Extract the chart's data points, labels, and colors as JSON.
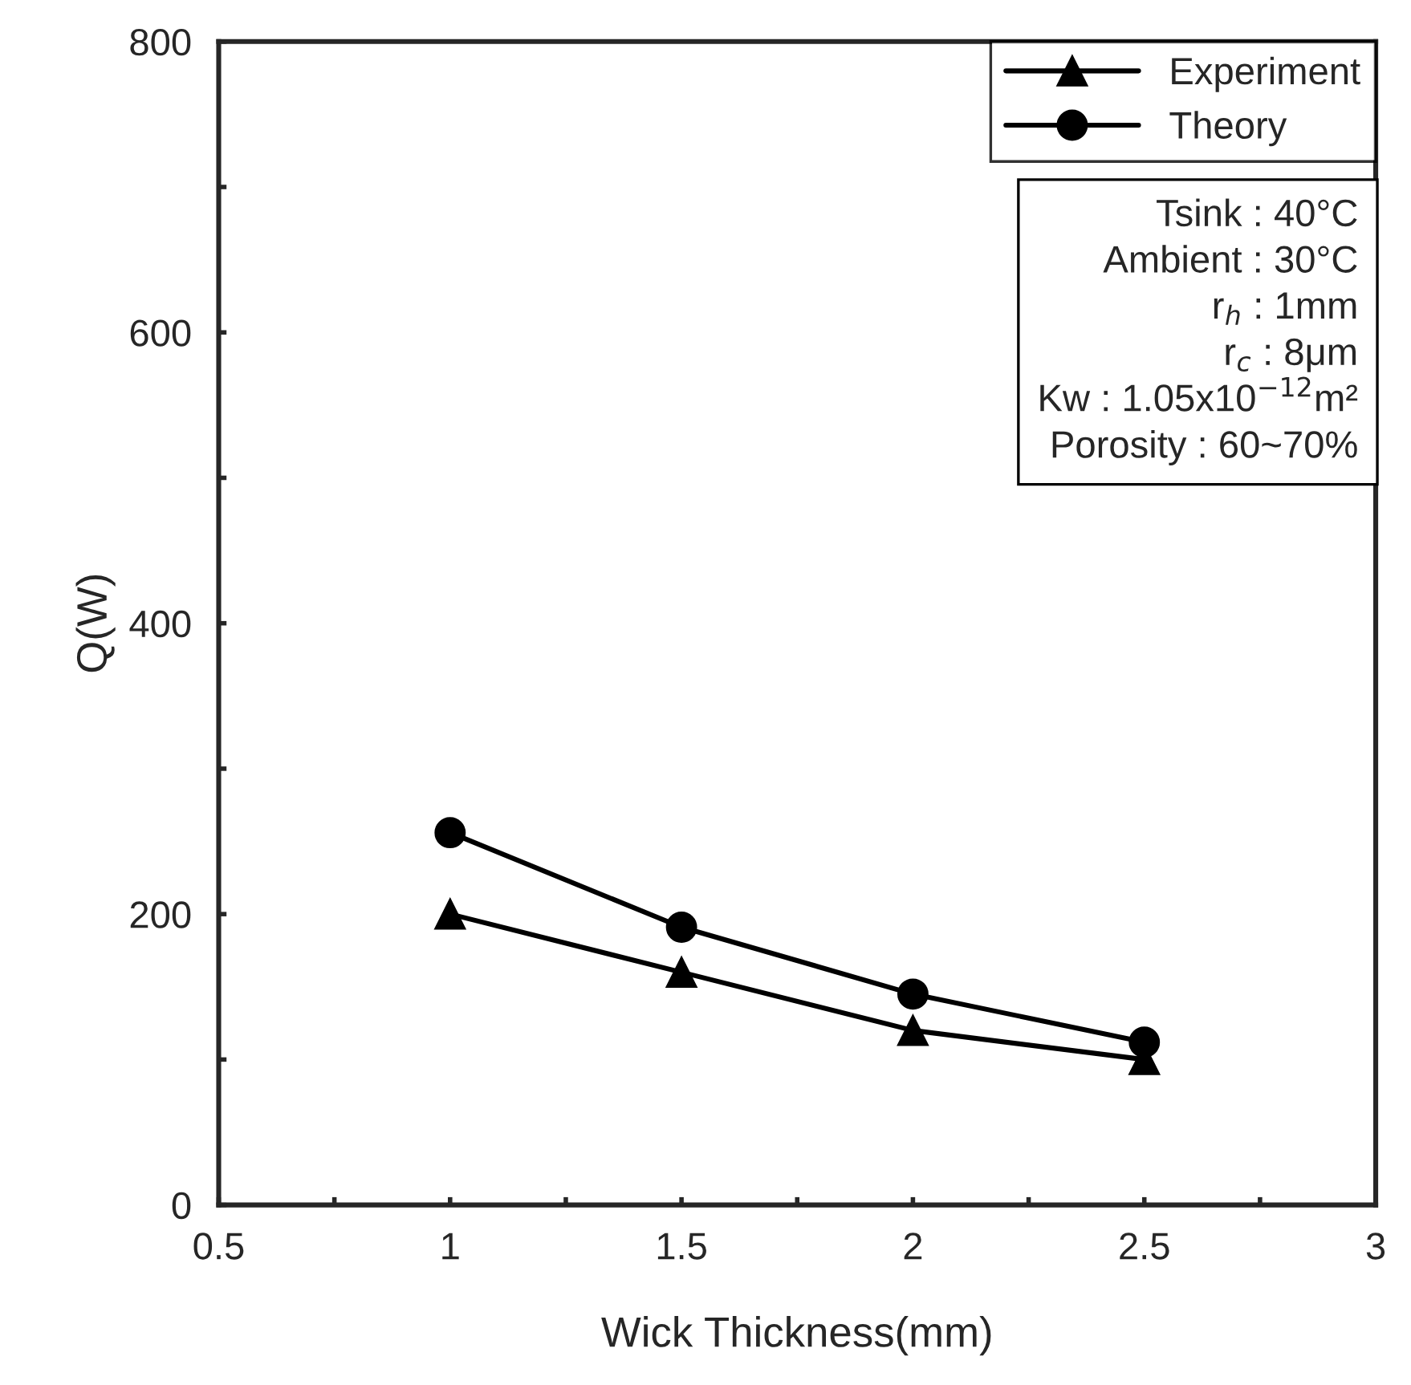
{
  "chart_data": {
    "type": "line",
    "xlabel": "Wick Thickness(mm)",
    "ylabel": "Q(W)",
    "x": [
      1,
      1.5,
      2,
      2.5
    ],
    "series": [
      {
        "name": "Experiment",
        "color": "#000000",
        "marker": "triangle",
        "values": [
          200,
          160,
          120,
          100
        ]
      },
      {
        "name": "Theory",
        "color": "#000000",
        "marker": "circle",
        "values": [
          256,
          191,
          145,
          112
        ]
      }
    ],
    "xlim": [
      0.5,
      3
    ],
    "xticks": [
      0.5,
      {
        "value": 0.75,
        "label": null
      },
      1,
      {
        "value": 1.25,
        "label": null
      },
      1.5,
      {
        "value": 1.75,
        "label": null
      },
      2,
      {
        "value": 2.25,
        "label": null
      },
      2.5,
      {
        "value": 2.75,
        "label": null
      },
      3
    ],
    "ylim": [
      0,
      800
    ],
    "yticks": [
      0,
      {
        "value": 100,
        "label": null
      },
      200,
      {
        "value": 300,
        "label": null
      },
      400,
      {
        "value": 500,
        "label": null
      },
      600,
      {
        "value": 700,
        "label": null
      },
      800
    ],
    "line_style": "solid",
    "grid": false,
    "legend": "top right",
    "annotations": [
      "Tsink : 40°C",
      "Ambient : 30°C",
      "r$_{h}$ : 1mm",
      "r$_{c}$ : 8μm",
      "Kw : 1.05x10$^{−12}$m²",
      "Porosity : 60~70%"
    ]
  }
}
